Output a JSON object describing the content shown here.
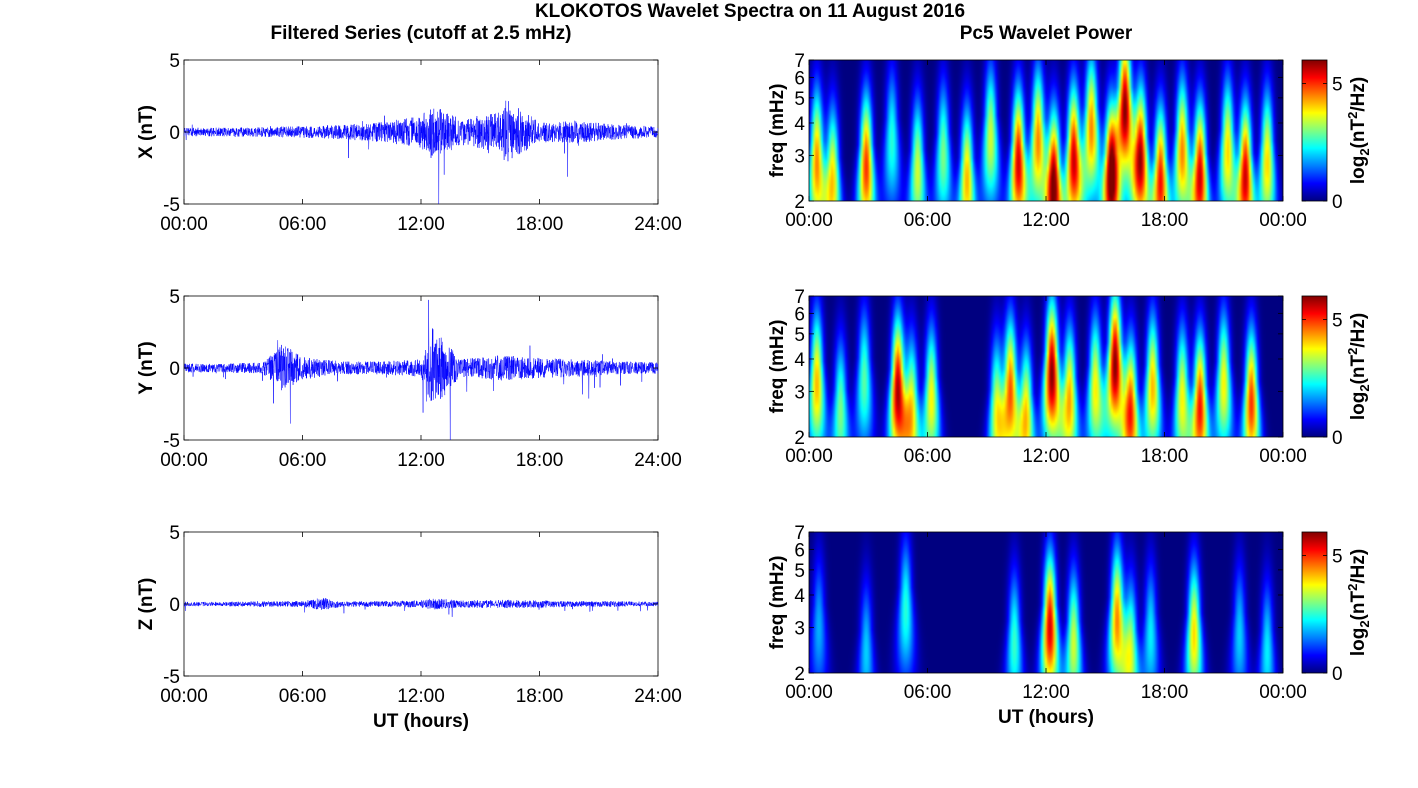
{
  "figure": {
    "title": "KLOKOTOS Wavelet Spectra on 11 August 2016",
    "left_title": "Filtered Series (cutoff at 2.5 mHz)",
    "right_title": "Pc5 Wavelet Power"
  },
  "chart_data": [
    {
      "type": "line",
      "panel": "X series",
      "title": "",
      "xlabel": "",
      "ylabel": "X (nT)",
      "xlim": [
        "00:00",
        "24:00"
      ],
      "xticks": [
        "00:00",
        "06:00",
        "12:00",
        "18:00",
        "24:00"
      ],
      "ylim": [
        -5,
        5
      ],
      "yticks": [
        "5",
        "0",
        "-5"
      ],
      "color": "#0000ff",
      "series": [
        {
          "x_hours": [
            0,
            2,
            4,
            6,
            8,
            10,
            12,
            12.6,
            14,
            16,
            16.3,
            18,
            20,
            22,
            24
          ],
          "envelope_nT": [
            0.3,
            0.3,
            0.35,
            0.4,
            0.5,
            0.7,
            1.1,
            2.0,
            0.9,
            1.4,
            2.3,
            0.7,
            0.8,
            0.5,
            0.4
          ]
        }
      ]
    },
    {
      "type": "heatmap",
      "panel": "X power",
      "xlabel": "",
      "ylabel": "freq (mHz)",
      "xticks": [
        "00:00",
        "06:00",
        "12:00",
        "18:00",
        "00:00"
      ],
      "yticks": [
        "2",
        "3",
        "4",
        "5",
        "6",
        "7"
      ],
      "ylim_mHz": [
        2,
        7
      ],
      "y_scale": "log",
      "colorbar": {
        "label_pre": "log",
        "label_sub": "2",
        "label_mid": "(nT",
        "label_sup": "2",
        "label_post": "/Hz)",
        "ticks": [
          "0",
          "5"
        ],
        "range": [
          0,
          6
        ],
        "colormap": "jet"
      },
      "bursts": [
        {
          "t": 0.4,
          "f": 2.8,
          "p": 4.5
        },
        {
          "t": 1.2,
          "f": 2.4,
          "p": 4.0
        },
        {
          "t": 2.9,
          "f": 2.7,
          "p": 5.0
        },
        {
          "t": 4.2,
          "f": 3.4,
          "p": 2.5
        },
        {
          "t": 5.5,
          "f": 2.6,
          "p": 3.5
        },
        {
          "t": 6.8,
          "f": 3.0,
          "p": 3.0
        },
        {
          "t": 8.0,
          "f": 2.4,
          "p": 4.2
        },
        {
          "t": 9.2,
          "f": 3.5,
          "p": 3.5
        },
        {
          "t": 10.6,
          "f": 2.8,
          "p": 5.5
        },
        {
          "t": 11.6,
          "f": 3.4,
          "p": 4.5
        },
        {
          "t": 12.4,
          "f": 2.3,
          "p": 6.0
        },
        {
          "t": 13.4,
          "f": 2.9,
          "p": 5.5
        },
        {
          "t": 14.3,
          "f": 3.8,
          "p": 4.5
        },
        {
          "t": 15.3,
          "f": 2.5,
          "p": 6.0
        },
        {
          "t": 16.0,
          "f": 4.5,
          "p": 6.0
        },
        {
          "t": 16.8,
          "f": 2.9,
          "p": 5.5
        },
        {
          "t": 17.8,
          "f": 2.4,
          "p": 5.2
        },
        {
          "t": 18.9,
          "f": 3.1,
          "p": 4.5
        },
        {
          "t": 19.8,
          "f": 2.5,
          "p": 5.5
        },
        {
          "t": 21.2,
          "f": 3.1,
          "p": 4.0
        },
        {
          "t": 22.1,
          "f": 2.5,
          "p": 5.5
        },
        {
          "t": 23.2,
          "f": 2.8,
          "p": 4.0
        }
      ]
    },
    {
      "type": "line",
      "panel": "Y series",
      "xlabel": "",
      "ylabel": "Y (nT)",
      "xlim": [
        "00:00",
        "24:00"
      ],
      "xticks": [
        "00:00",
        "06:00",
        "12:00",
        "18:00",
        "24:00"
      ],
      "ylim": [
        -5,
        5
      ],
      "yticks": [
        "5",
        "0",
        "-5"
      ],
      "color": "#0000ff",
      "series": [
        {
          "x_hours": [
            0,
            2,
            4,
            5,
            6,
            8,
            10,
            12,
            12.6,
            14,
            16,
            18,
            20,
            22,
            24
          ],
          "envelope_nT": [
            0.3,
            0.3,
            0.4,
            1.7,
            0.8,
            0.45,
            0.45,
            0.6,
            2.9,
            0.6,
            0.9,
            0.7,
            0.6,
            0.45,
            0.4
          ]
        }
      ]
    },
    {
      "type": "heatmap",
      "panel": "Y power",
      "xlabel": "",
      "ylabel": "freq (mHz)",
      "xticks": [
        "00:00",
        "06:00",
        "12:00",
        "18:00",
        "00:00"
      ],
      "yticks": [
        "2",
        "3",
        "4",
        "5",
        "6",
        "7"
      ],
      "ylim_mHz": [
        2,
        7
      ],
      "y_scale": "log",
      "colorbar": {
        "label_pre": "log",
        "label_sub": "2",
        "label_mid": "(nT",
        "label_sup": "2",
        "label_post": "/Hz)",
        "ticks": [
          "0",
          "5"
        ],
        "range": [
          0,
          6
        ],
        "colormap": "jet"
      },
      "bursts": [
        {
          "t": 0.4,
          "f": 3.2,
          "p": 4.2
        },
        {
          "t": 1.6,
          "f": 2.5,
          "p": 3.0
        },
        {
          "t": 2.8,
          "f": 3.3,
          "p": 2.8
        },
        {
          "t": 4.5,
          "f": 3.0,
          "p": 5.8
        },
        {
          "t": 5.2,
          "f": 2.5,
          "p": 3.8
        },
        {
          "t": 6.2,
          "f": 2.8,
          "p": 3.8
        },
        {
          "t": 9.5,
          "f": 2.5,
          "p": 3.5
        },
        {
          "t": 10.2,
          "f": 3.0,
          "p": 4.8
        },
        {
          "t": 11.0,
          "f": 2.4,
          "p": 4.0
        },
        {
          "t": 12.3,
          "f": 3.5,
          "p": 6.0
        },
        {
          "t": 13.2,
          "f": 2.8,
          "p": 4.2
        },
        {
          "t": 14.5,
          "f": 3.1,
          "p": 3.8
        },
        {
          "t": 15.5,
          "f": 3.8,
          "p": 6.0
        },
        {
          "t": 16.3,
          "f": 2.5,
          "p": 4.8
        },
        {
          "t": 17.4,
          "f": 3.1,
          "p": 4.2
        },
        {
          "t": 18.9,
          "f": 2.8,
          "p": 3.8
        },
        {
          "t": 19.8,
          "f": 2.6,
          "p": 5.2
        },
        {
          "t": 21.0,
          "f": 3.2,
          "p": 3.8
        },
        {
          "t": 22.4,
          "f": 2.7,
          "p": 5.0
        }
      ]
    },
    {
      "type": "line",
      "panel": "Z series",
      "xlabel": "UT (hours)",
      "ylabel": "Z (nT)",
      "xlim": [
        "00:00",
        "24:00"
      ],
      "xticks": [
        "00:00",
        "06:00",
        "12:00",
        "18:00",
        "24:00"
      ],
      "ylim": [
        -5,
        5
      ],
      "yticks": [
        "5",
        "0",
        "-5"
      ],
      "color": "#0000ff",
      "series": [
        {
          "x_hours": [
            0,
            2,
            4,
            6,
            7,
            8,
            10,
            12,
            12.6,
            14,
            16,
            18,
            20,
            22,
            24
          ],
          "envelope_nT": [
            0.15,
            0.15,
            0.2,
            0.2,
            0.45,
            0.2,
            0.2,
            0.25,
            0.4,
            0.25,
            0.3,
            0.25,
            0.2,
            0.2,
            0.15
          ]
        }
      ]
    },
    {
      "type": "heatmap",
      "panel": "Z power",
      "xlabel": "UT (hours)",
      "ylabel": "freq (mHz)",
      "xticks": [
        "00:00",
        "06:00",
        "12:00",
        "18:00",
        "00:00"
      ],
      "yticks": [
        "2",
        "3",
        "4",
        "5",
        "6",
        "7"
      ],
      "ylim_mHz": [
        2,
        7
      ],
      "y_scale": "log",
      "colorbar": {
        "label_pre": "log",
        "label_sub": "2",
        "label_mid": "(nT",
        "label_sup": "2",
        "label_post": "/Hz)",
        "ticks": [
          "0",
          "5"
        ],
        "range": [
          0,
          6
        ],
        "colormap": "jet"
      },
      "bursts": [
        {
          "t": 0.5,
          "f": 3.0,
          "p": 1.8
        },
        {
          "t": 2.9,
          "f": 2.4,
          "p": 2.0
        },
        {
          "t": 4.9,
          "f": 3.5,
          "p": 2.5
        },
        {
          "t": 10.4,
          "f": 2.6,
          "p": 2.6
        },
        {
          "t": 12.2,
          "f": 3.0,
          "p": 5.5
        },
        {
          "t": 13.4,
          "f": 2.6,
          "p": 3.5
        },
        {
          "t": 15.6,
          "f": 3.2,
          "p": 4.5
        },
        {
          "t": 16.3,
          "f": 2.4,
          "p": 3.2
        },
        {
          "t": 17.3,
          "f": 2.8,
          "p": 2.2
        },
        {
          "t": 19.5,
          "f": 2.8,
          "p": 4.0
        },
        {
          "t": 21.8,
          "f": 2.8,
          "p": 2.0
        },
        {
          "t": 23.2,
          "f": 2.4,
          "p": 2.2
        }
      ]
    }
  ]
}
